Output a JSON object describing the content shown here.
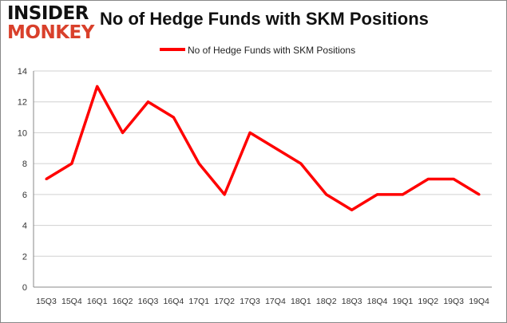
{
  "logo": {
    "line1": "INSIDER",
    "line2": "MONKEY"
  },
  "chart_data": {
    "type": "line",
    "title": "No of Hedge Funds with SKM Positions",
    "categories": [
      "15Q3",
      "15Q4",
      "16Q1",
      "16Q2",
      "16Q3",
      "16Q4",
      "17Q1",
      "17Q2",
      "17Q3",
      "17Q4",
      "18Q1",
      "18Q2",
      "18Q3",
      "18Q4",
      "19Q1",
      "19Q2",
      "19Q3",
      "19Q4"
    ],
    "series": [
      {
        "name": "No of Hedge Funds with SKM Positions",
        "values": [
          7,
          8,
          13,
          10,
          12,
          11,
          8,
          6,
          10,
          9,
          8,
          6,
          5,
          6,
          6,
          7,
          7,
          6
        ],
        "color": "#ff0000"
      }
    ],
    "ylim": [
      0,
      14
    ],
    "yticks": [
      0,
      2,
      4,
      6,
      8,
      10,
      12,
      14
    ],
    "grid": true,
    "legend": "top-center"
  }
}
